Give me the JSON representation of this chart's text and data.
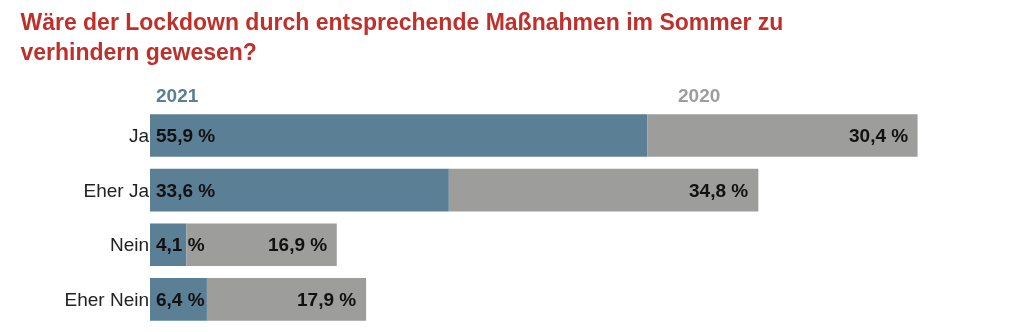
{
  "chart_data": {
    "type": "bar",
    "orientation": "horizontal",
    "stacked": true,
    "title": "Wäre der Lockdown durch entsprechende Maßnahmen im Sommer zu verhindern gewesen?",
    "categories": [
      "Ja",
      "Eher Ja",
      "Nein",
      "Eher Nein"
    ],
    "series": [
      {
        "name": "2021",
        "color": "#5b7f95",
        "values": [
          55.9,
          33.6,
          4.1,
          6.4
        ],
        "value_labels": [
          "55,9 %",
          "33,6 %",
          "4,1 %",
          "6,4 %"
        ]
      },
      {
        "name": "2020",
        "color": "#9d9d9c",
        "values": [
          30.4,
          34.8,
          16.9,
          17.9
        ],
        "value_labels": [
          "30,4 %",
          "34,8 %",
          "16,9 %",
          "17,9 %"
        ]
      }
    ],
    "legend": false
  }
}
